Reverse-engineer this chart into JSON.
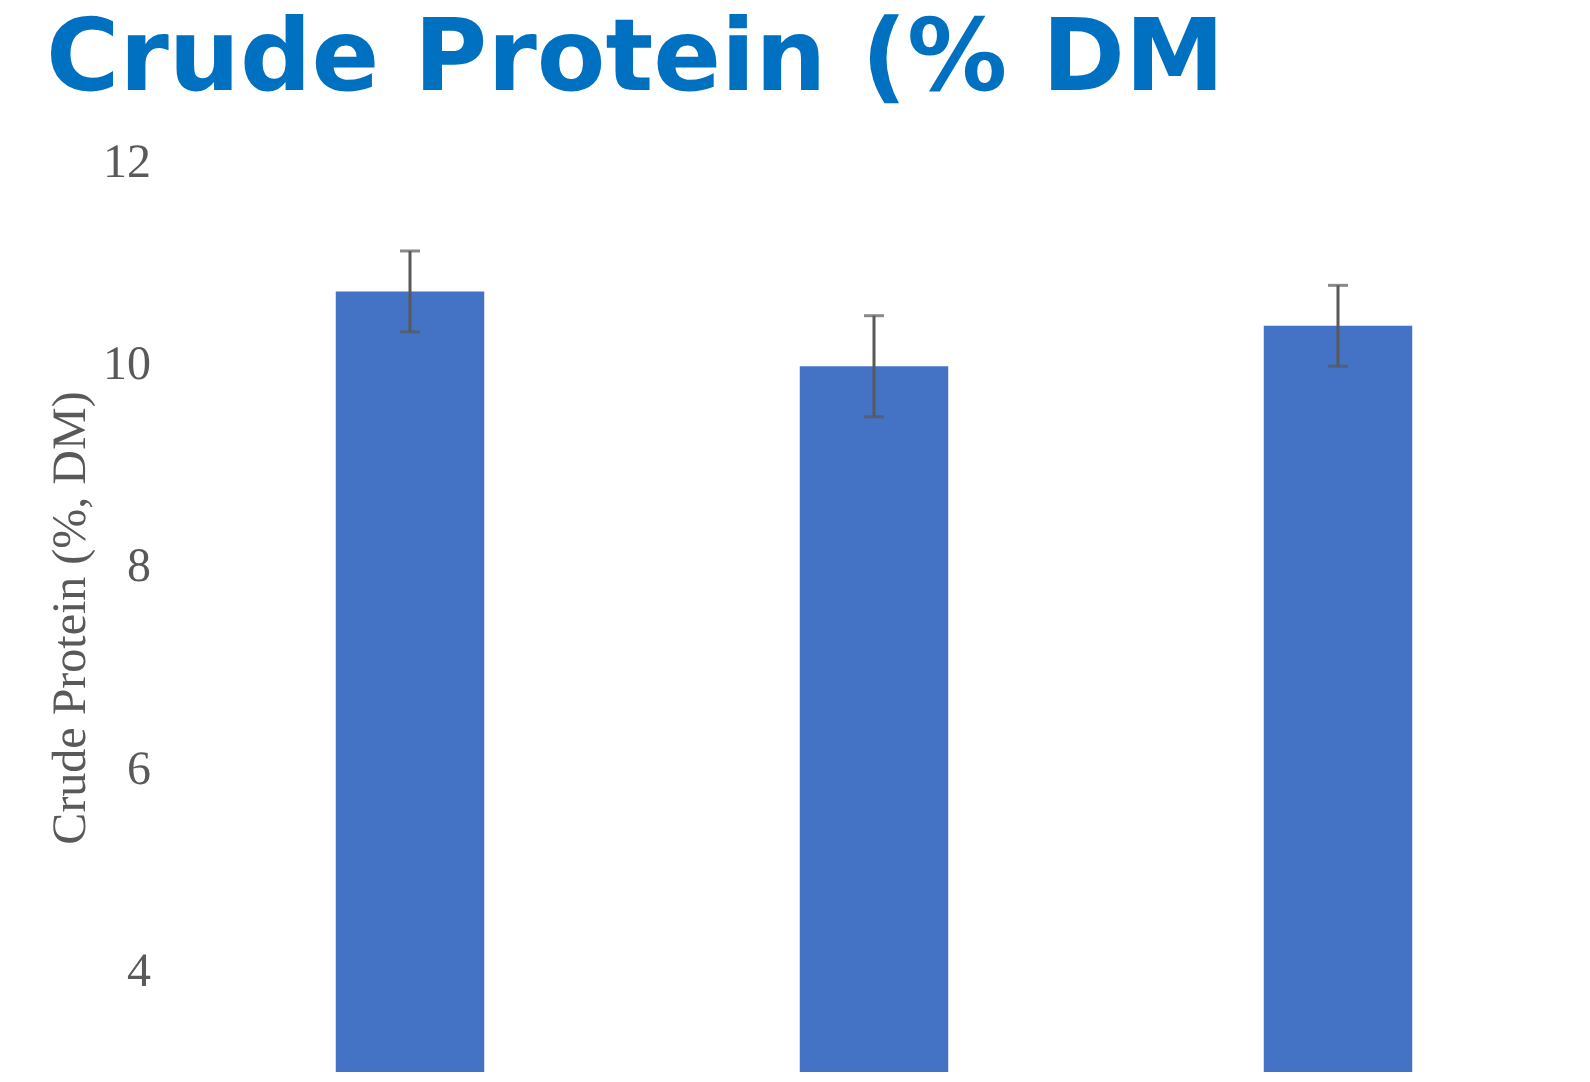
{
  "chart_data": {
    "type": "bar",
    "title": "Crude Protein (% DM",
    "ylabel": "Crude Protein (%, DM)",
    "categories": [
      null,
      null,
      null
    ],
    "values": [
      10.72,
      9.98,
      10.38
    ],
    "errors": [
      0.4,
      0.5,
      0.4
    ],
    "color": "#4472c4",
    "ylim": [
      3,
      12
    ],
    "yticks": [
      4,
      6,
      8,
      10,
      12
    ],
    "grid": false,
    "tick_labels": "y"
  }
}
